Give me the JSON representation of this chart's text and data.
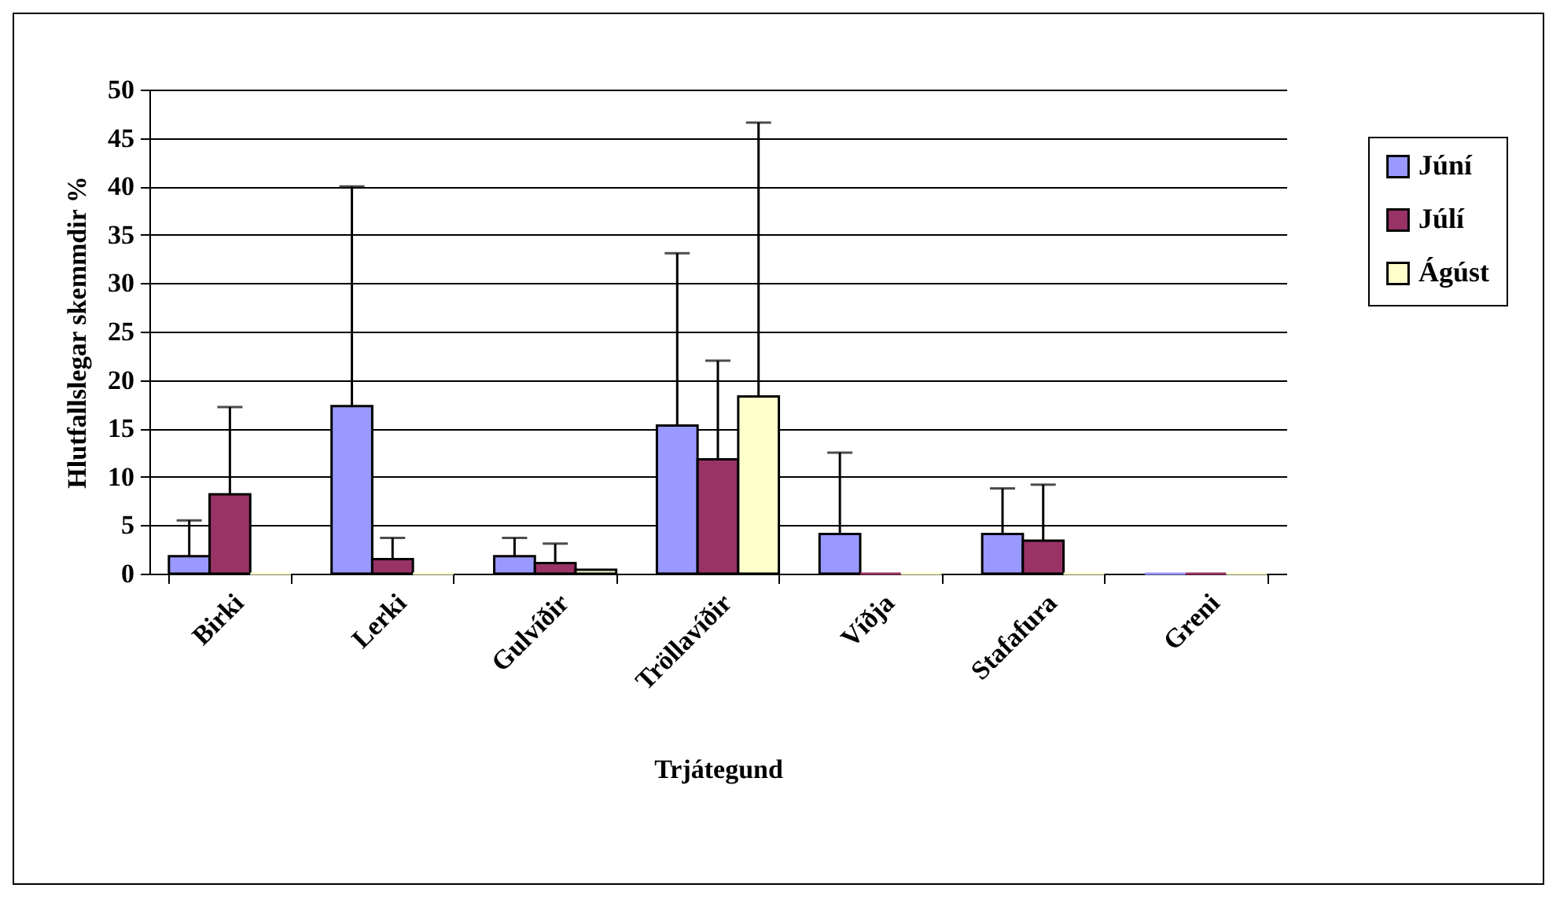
{
  "chart_data": {
    "type": "bar",
    "xlabel": "Trjátegund",
    "ylabel": "Hlutfallslegar skemmdir %",
    "categories": [
      "Birki",
      "Lerki",
      "Gulvíðir",
      "Tröllavíðir",
      "Víðja",
      "Stafafura",
      "Greni"
    ],
    "series": [
      {
        "name": "Júní",
        "color": "#9999ff",
        "values": [
          1.8,
          17.3,
          1.8,
          15.3,
          4.1,
          4.1,
          0
        ],
        "errors": [
          [
            1.8,
            5.5
          ],
          [
            17.3,
            40
          ],
          [
            1.8,
            3.7
          ],
          [
            15.3,
            33.1
          ],
          [
            4.1,
            12.5
          ],
          [
            4.1,
            8.8
          ],
          null
        ]
      },
      {
        "name": "Júlí",
        "color": "#993366",
        "values": [
          8.2,
          1.5,
          1.1,
          11.8,
          0,
          3.4,
          0
        ],
        "errors": [
          [
            8.2,
            17.2
          ],
          [
            1.5,
            3.7
          ],
          [
            1.1,
            3.1
          ],
          [
            11.8,
            22
          ],
          null,
          [
            3.4,
            9.2
          ],
          null
        ]
      },
      {
        "name": "Ágúst",
        "color": "#ffffcc",
        "values": [
          0,
          0,
          0.4,
          18.3,
          0,
          0,
          0
        ],
        "errors": [
          null,
          null,
          null,
          [
            18.3,
            46.6
          ],
          null,
          null,
          null
        ]
      }
    ],
    "ylim": [
      0,
      50
    ],
    "yticks": [
      0,
      5,
      10,
      15,
      20,
      25,
      30,
      35,
      40,
      45,
      50
    ],
    "grid": "y",
    "legend": "right"
  }
}
